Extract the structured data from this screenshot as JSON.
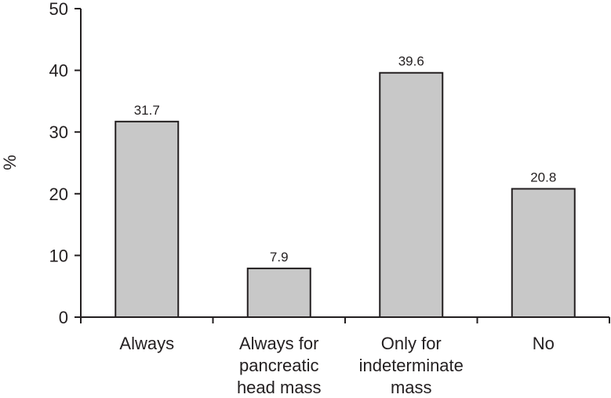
{
  "chart_data": {
    "type": "bar",
    "categories": [
      [
        "Always"
      ],
      [
        "Always for",
        "pancreatic",
        "head mass"
      ],
      [
        "Only for",
        "indeterminate",
        "mass"
      ],
      [
        "No"
      ]
    ],
    "values": [
      31.7,
      7.9,
      39.6,
      20.8
    ],
    "data_labels": [
      "31.7",
      "7.9",
      "39.6",
      "20.8"
    ],
    "ylabel": "%",
    "ylim": [
      0,
      50
    ],
    "yticks": [
      0,
      10,
      20,
      30,
      40,
      50
    ],
    "grid": false,
    "colors": {
      "bar_fill": "#c8c8c8",
      "bar_stroke": "#231f20",
      "axis": "#231f20"
    }
  }
}
